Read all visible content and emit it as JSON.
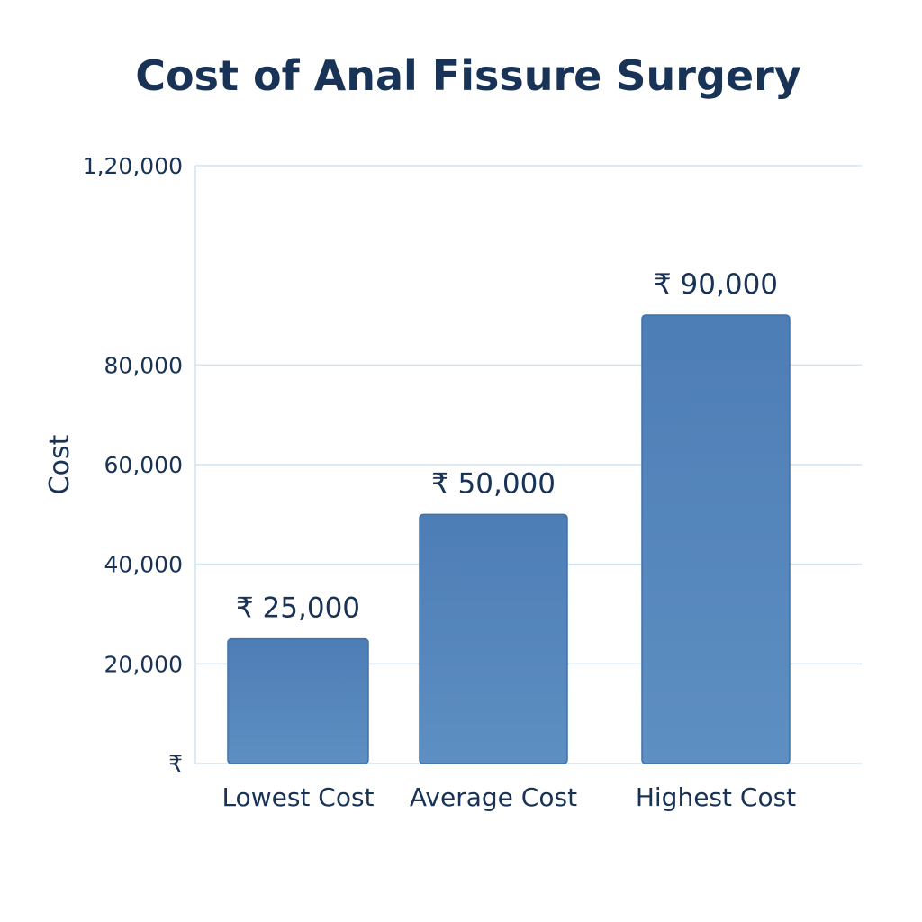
{
  "chart_data": {
    "type": "bar",
    "title": "Cost of Anal Fissure Surgery",
    "xlabel": "",
    "ylabel": "Cost",
    "categories": [
      "Lowest Cost",
      "Average Cost",
      "Highest Cost"
    ],
    "values": [
      25000,
      50000,
      90000
    ],
    "value_labels": [
      "₹ 25,000",
      "₹ 50,000",
      "₹ 90,000"
    ],
    "ylim": [
      0,
      120000
    ],
    "yticks": [
      {
        "value": 0,
        "label": "₹"
      },
      {
        "value": 20000,
        "label": "20,000"
      },
      {
        "value": 40000,
        "label": "40,000"
      },
      {
        "value": 60000,
        "label": "60,000"
      },
      {
        "value": 80000,
        "label": "80,000"
      },
      {
        "value": 120000,
        "label": "1,20,000"
      }
    ],
    "grid": true,
    "colors": {
      "bar_top": "#4d7db5",
      "bar_bottom": "#5e8fc2",
      "text": "#183356",
      "grid": "#cfe3f1"
    }
  }
}
